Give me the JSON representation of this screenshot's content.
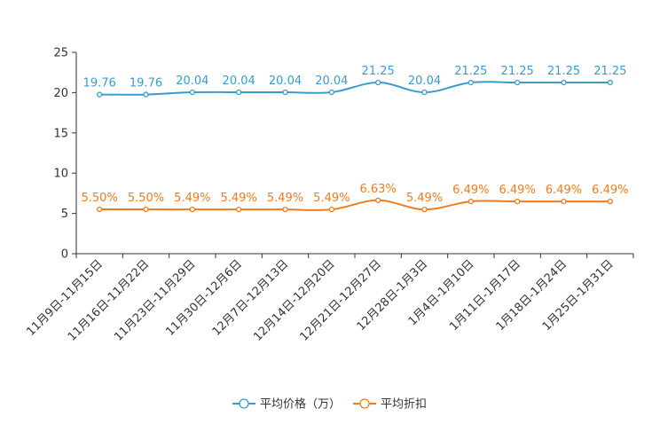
{
  "chart_data": {
    "type": "line",
    "title": "",
    "xlabel": "",
    "ylabel": "",
    "ylim": [
      0,
      25
    ],
    "yticks": [
      0,
      5,
      10,
      15,
      20,
      25
    ],
    "grid": false,
    "legend_position": "bottom-center",
    "categories": [
      "11月9日-11月15日",
      "11月16日-11月22日",
      "11月23日-11月29日",
      "11月30日-12月6日",
      "12月7日-12月13日",
      "12月14日-12月20日",
      "12月21日-12月27日",
      "12月28日-1月3日",
      "1月4日-1月10日",
      "1月11日-1月17日",
      "1月18日-1月24日",
      "1月25日-1月31日"
    ],
    "series": [
      {
        "name": "平均价格（万）",
        "color": "#3a9ccb",
        "values": [
          19.76,
          19.76,
          20.04,
          20.04,
          20.04,
          20.04,
          21.25,
          20.04,
          21.25,
          21.25,
          21.25,
          21.25
        ],
        "labels": [
          "19.76",
          "19.76",
          "20.04",
          "20.04",
          "20.04",
          "20.04",
          "21.25",
          "20.04",
          "21.25",
          "21.25",
          "21.25",
          "21.25"
        ]
      },
      {
        "name": "平均折扣",
        "color": "#f07c1d",
        "values": [
          5.5,
          5.5,
          5.49,
          5.49,
          5.49,
          5.49,
          6.63,
          5.49,
          6.49,
          6.49,
          6.49,
          6.49
        ],
        "labels": [
          "5.50%",
          "5.50%",
          "5.49%",
          "5.49%",
          "5.49%",
          "5.49%",
          "6.63%",
          "5.49%",
          "6.49%",
          "6.49%",
          "6.49%",
          "6.49%"
        ]
      }
    ]
  }
}
